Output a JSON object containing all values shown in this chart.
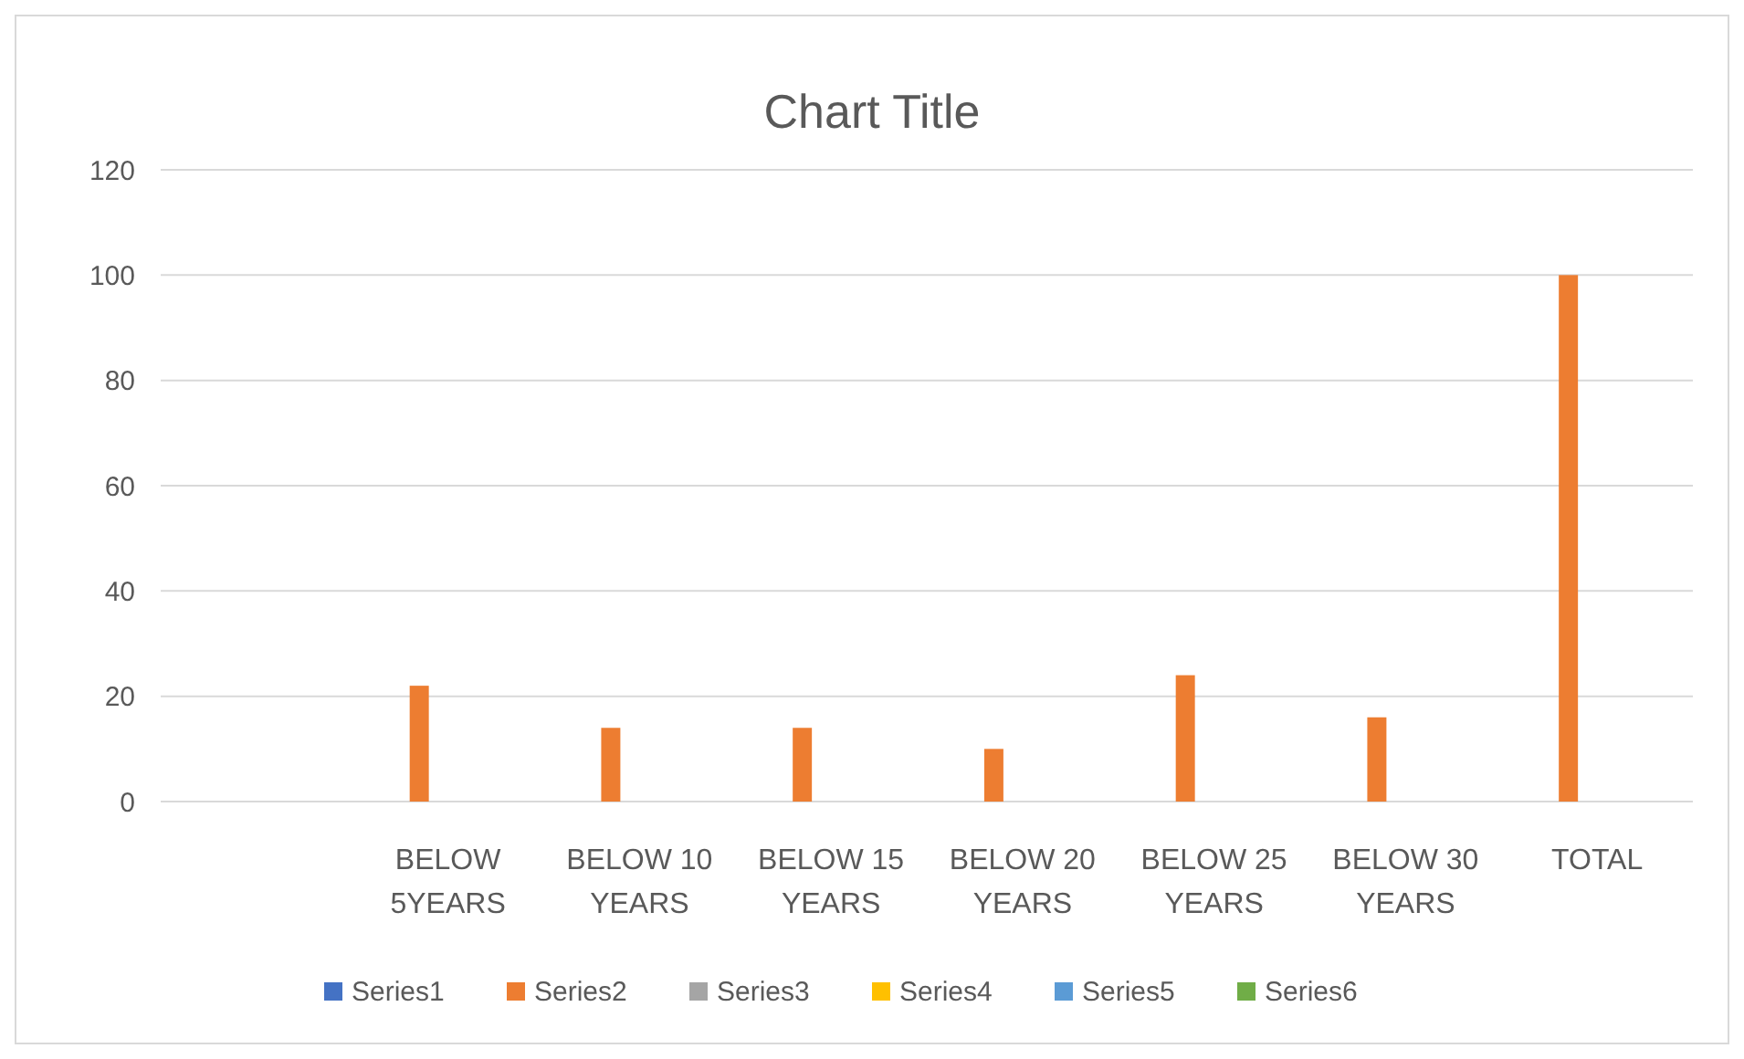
{
  "chart_data": {
    "type": "bar",
    "title": "Chart Title",
    "categories": [
      null,
      "BELOW 5YEARS",
      "BELOW 10 YEARS",
      "BELOW 15 YEARS",
      "BELOW 20 YEARS",
      "BELOW 25 YEARS",
      "BELOW 30 YEARS",
      "TOTAL"
    ],
    "series": [
      {
        "name": "Series1",
        "color": "#4472c4",
        "values": [
          null,
          null,
          null,
          null,
          null,
          null,
          null,
          null
        ]
      },
      {
        "name": "Series2",
        "color": "#ed7d31",
        "values": [
          null,
          22,
          14,
          14,
          10,
          24,
          16,
          100
        ]
      },
      {
        "name": "Series3",
        "color": "#a5a5a5",
        "values": [
          null,
          null,
          null,
          null,
          null,
          null,
          null,
          null
        ]
      },
      {
        "name": "Series4",
        "color": "#ffc000",
        "values": [
          null,
          null,
          null,
          null,
          null,
          null,
          null,
          null
        ]
      },
      {
        "name": "Series5",
        "color": "#5b9bd5",
        "values": [
          null,
          null,
          null,
          null,
          null,
          null,
          null,
          null
        ]
      },
      {
        "name": "Series6",
        "color": "#70ad47",
        "values": [
          null,
          null,
          null,
          null,
          null,
          null,
          null,
          null
        ]
      }
    ],
    "ylim": [
      0,
      120
    ],
    "yticks": [
      0,
      20,
      40,
      60,
      80,
      100,
      120
    ],
    "grid": "y",
    "legend": "bottom"
  }
}
